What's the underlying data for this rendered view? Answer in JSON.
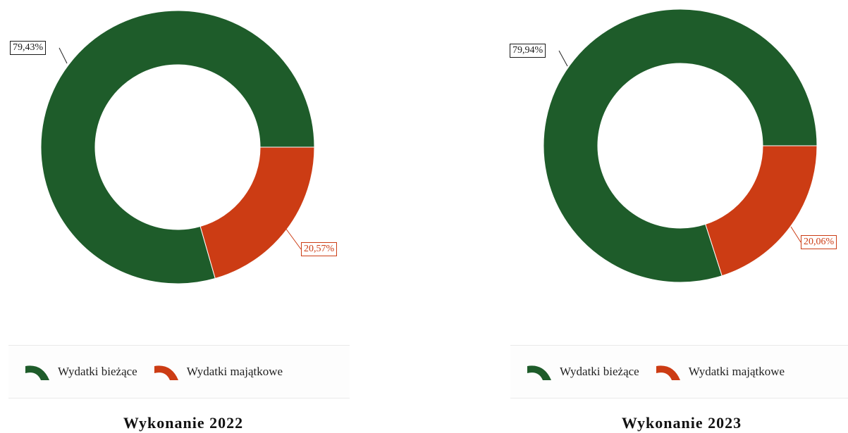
{
  "chart_data": [
    {
      "type": "pie",
      "donut": true,
      "title": "Wykonanie 2022",
      "categories": [
        "Wydatki bieżące",
        "Wydatki majątkowe"
      ],
      "values": [
        79.43,
        20.57
      ],
      "value_labels": [
        "79,43%",
        "20,57%"
      ],
      "colors": [
        "#1e5c2a",
        "#cc3c14"
      ],
      "legend_position": "bottom"
    },
    {
      "type": "pie",
      "donut": true,
      "title": "Wykonanie 2023",
      "categories": [
        "Wydatki bieżące",
        "Wydatki majątkowe"
      ],
      "values": [
        79.94,
        20.06
      ],
      "value_labels": [
        "79,94%",
        "20,06%"
      ],
      "colors": [
        "#1e5c2a",
        "#cc3c14"
      ],
      "legend_position": "bottom"
    }
  ]
}
